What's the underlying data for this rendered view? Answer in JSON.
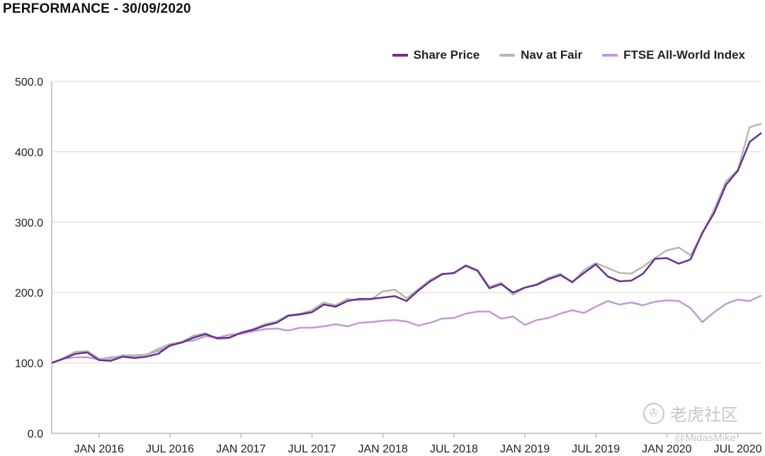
{
  "page": {
    "title": "PERFORMANCE - 30/09/2020"
  },
  "watermark": {
    "brand": "老虎社区",
    "handle": "@MidasMike",
    "logo_icon": "tiger-community-logo"
  },
  "chart_data": {
    "type": "line",
    "title": "",
    "xlabel": "",
    "ylabel": "",
    "ylim": [
      0,
      500
    ],
    "yticks": [
      "0.0",
      "100.0",
      "200.0",
      "300.0",
      "400.0",
      "500.0"
    ],
    "xticks": [
      {
        "label": "JAN 2016",
        "x": "2016-01"
      },
      {
        "label": "JUL 2016",
        "x": "2016-07"
      },
      {
        "label": "JAN 2017",
        "x": "2017-01"
      },
      {
        "label": "JUL 2017",
        "x": "2017-07"
      },
      {
        "label": "JAN 2018",
        "x": "2018-01"
      },
      {
        "label": "JUL 2018",
        "x": "2018-07"
      },
      {
        "label": "JAN 2019",
        "x": "2019-01"
      },
      {
        "label": "JUL 2019",
        "x": "2019-07"
      },
      {
        "label": "JAN 2020",
        "x": "2020-01"
      },
      {
        "label": "JUL 2020",
        "x": "2020-07"
      }
    ],
    "x_range": [
      "2015-09",
      "2020-09"
    ],
    "grid": "horizontal",
    "legend": "top-right",
    "x": [
      "2015-09",
      "2015-10",
      "2015-11",
      "2015-12",
      "2016-01",
      "2016-02",
      "2016-03",
      "2016-04",
      "2016-05",
      "2016-06",
      "2016-07",
      "2016-08",
      "2016-09",
      "2016-10",
      "2016-11",
      "2016-12",
      "2017-01",
      "2017-02",
      "2017-03",
      "2017-04",
      "2017-05",
      "2017-06",
      "2017-07",
      "2017-08",
      "2017-09",
      "2017-10",
      "2017-11",
      "2017-12",
      "2018-01",
      "2018-02",
      "2018-03",
      "2018-04",
      "2018-05",
      "2018-06",
      "2018-07",
      "2018-08",
      "2018-09",
      "2018-10",
      "2018-11",
      "2018-12",
      "2019-01",
      "2019-02",
      "2019-03",
      "2019-04",
      "2019-05",
      "2019-06",
      "2019-07",
      "2019-08",
      "2019-09",
      "2019-10",
      "2019-11",
      "2019-12",
      "2020-01",
      "2020-02",
      "2020-03",
      "2020-04",
      "2020-05",
      "2020-06",
      "2020-07",
      "2020-08",
      "2020-09"
    ],
    "series": [
      {
        "name": "Share Price",
        "color": "#6b3090",
        "width": 2.5,
        "values": [
          100,
          106,
          113,
          115,
          104,
          103,
          109,
          107,
          109,
          113,
          125,
          129,
          136,
          141,
          135,
          136,
          143,
          147,
          153,
          157,
          167,
          169,
          172,
          183,
          180,
          188,
          191,
          191,
          193,
          195,
          188,
          203,
          216,
          226,
          228,
          238,
          231,
          206,
          212,
          200,
          207,
          211,
          219,
          225,
          215,
          228,
          240,
          223,
          216,
          217,
          227,
          248,
          249,
          241,
          247,
          285,
          313,
          353,
          373,
          414,
          427
        ]
      },
      {
        "name": "Nav at Fair",
        "color": "#b8b8b0",
        "width": 2.5,
        "values": [
          100,
          107,
          116,
          117,
          106,
          106,
          111,
          111,
          112,
          120,
          127,
          130,
          139,
          142,
          134,
          135,
          143,
          148,
          155,
          159,
          168,
          170,
          175,
          186,
          182,
          191,
          189,
          190,
          202,
          204,
          192,
          205,
          218,
          227,
          227,
          239,
          232,
          208,
          214,
          197,
          207,
          212,
          221,
          227,
          214,
          232,
          242,
          235,
          228,
          227,
          237,
          249,
          260,
          264,
          253,
          283,
          318,
          358,
          374,
          435,
          440
        ]
      },
      {
        "name": "FTSE All-World Index",
        "color": "#c49ad2",
        "width": 2.5,
        "values": [
          100,
          106,
          108,
          108,
          105,
          108,
          110,
          110,
          112,
          117,
          124,
          130,
          132,
          138,
          136,
          140,
          141,
          145,
          148,
          149,
          146,
          150,
          150,
          152,
          155,
          152,
          157,
          158,
          160,
          161,
          159,
          153,
          157,
          163,
          164,
          170,
          173,
          173,
          163,
          166,
          154,
          161,
          164,
          170,
          175,
          171,
          180,
          188,
          183,
          186,
          182,
          187,
          189,
          188,
          178,
          158,
          172,
          184,
          190,
          188,
          196
        ]
      }
    ]
  }
}
